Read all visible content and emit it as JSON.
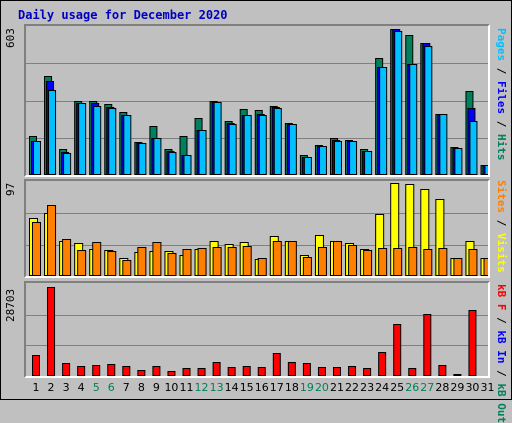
{
  "title": "Daily usage for December 2020",
  "colors": {
    "hits": "#00805c",
    "files": "#0000ff",
    "pages": "#00c0ff",
    "visits": "#ffff00",
    "sites": "#ff8000",
    "kbin": "#0000ff",
    "kbout": "#00805c",
    "kbf": "#ff0000",
    "weekday_label": "#000000",
    "weekend_label": "#00805c"
  },
  "legend": {
    "top": {
      "pages": "Pages",
      "sep1": " / ",
      "files": "Files",
      "sep2": " / ",
      "hits": "Hits"
    },
    "mid": {
      "sites": "Sites",
      "sep1": " / ",
      "visits": "Visits"
    },
    "bot": {
      "kbf": "kB F",
      "sep1": " / ",
      "kbin": "kB In",
      "sep2": " / ",
      "kbout": "kB Out"
    }
  },
  "chart_data": [
    {
      "type": "bar",
      "name": "hits-files-pages",
      "ymax_label": "603",
      "ylim": [
        0,
        603
      ],
      "categories": [
        "1",
        "2",
        "3",
        "4",
        "5",
        "6",
        "7",
        "8",
        "9",
        "10",
        "11",
        "12",
        "13",
        "14",
        "15",
        "16",
        "17",
        "18",
        "19",
        "20",
        "21",
        "22",
        "23",
        "24",
        "25",
        "26",
        "27",
        "28",
        "29",
        "30",
        "31"
      ],
      "weekend_days": [
        "5",
        "6",
        "12",
        "13",
        "19",
        "20",
        "26",
        "27"
      ],
      "series": [
        {
          "name": "Hits",
          "values": [
            160,
            405,
            105,
            305,
            305,
            290,
            260,
            135,
            200,
            105,
            160,
            235,
            305,
            220,
            270,
            265,
            285,
            215,
            80,
            125,
            150,
            145,
            105,
            480,
            600,
            575,
            540,
            250,
            115,
            345,
            40
          ]
        },
        {
          "name": "Files",
          "values": [
            140,
            385,
            95,
            295,
            295,
            280,
            245,
            130,
            150,
            100,
            80,
            185,
            300,
            215,
            245,
            250,
            280,
            210,
            75,
            120,
            145,
            140,
            100,
            445,
            600,
            455,
            540,
            250,
            110,
            275,
            40
          ]
        },
        {
          "name": "Pages",
          "values": [
            140,
            350,
            90,
            295,
            285,
            275,
            245,
            130,
            150,
            95,
            80,
            185,
            300,
            210,
            245,
            245,
            275,
            210,
            75,
            120,
            140,
            140,
            100,
            445,
            590,
            455,
            530,
            250,
            110,
            220,
            40
          ]
        }
      ]
    },
    {
      "type": "bar",
      "name": "visits-sites",
      "ymax_label": "97",
      "ylim": [
        0,
        97
      ],
      "categories": [
        "1",
        "2",
        "3",
        "4",
        "5",
        "6",
        "7",
        "8",
        "9",
        "10",
        "11",
        "12",
        "13",
        "14",
        "15",
        "16",
        "17",
        "18",
        "19",
        "20",
        "21",
        "22",
        "23",
        "24",
        "25",
        "26",
        "27",
        "28",
        "29",
        "30",
        "31"
      ],
      "series": [
        {
          "name": "Visits",
          "values": [
            60,
            66,
            37,
            34,
            28,
            27,
            19,
            25,
            26,
            26,
            22,
            28,
            36,
            33,
            35,
            18,
            42,
            37,
            22,
            43,
            37,
            34,
            28,
            65,
            97,
            96,
            91,
            80,
            19,
            36,
            19
          ]
        },
        {
          "name": "Sites",
          "values": [
            56,
            74,
            39,
            27,
            35,
            26,
            17,
            30,
            35,
            24,
            28,
            29,
            30,
            30,
            31,
            19,
            36,
            36,
            20,
            30,
            36,
            32,
            27,
            29,
            29,
            30,
            28,
            29,
            19,
            28,
            19
          ]
        }
      ]
    },
    {
      "type": "bar",
      "name": "kb",
      "ymax_label": "28703",
      "ylim": [
        0,
        28703
      ],
      "categories": [
        "1",
        "2",
        "3",
        "4",
        "5",
        "6",
        "7",
        "8",
        "9",
        "10",
        "11",
        "12",
        "13",
        "14",
        "15",
        "16",
        "17",
        "18",
        "19",
        "20",
        "21",
        "22",
        "23",
        "24",
        "25",
        "26",
        "27",
        "28",
        "29",
        "30",
        "31"
      ],
      "series": [
        {
          "name": "kB F",
          "values": [
            6700,
            28500,
            4200,
            3300,
            3600,
            3700,
            3300,
            1800,
            3300,
            1600,
            2400,
            2700,
            4400,
            3000,
            3300,
            2900,
            7200,
            4600,
            4000,
            2800,
            2900,
            3100,
            2700,
            7700,
            16600,
            2500,
            19900,
            3400,
            600,
            21100,
            0
          ]
        }
      ]
    }
  ]
}
